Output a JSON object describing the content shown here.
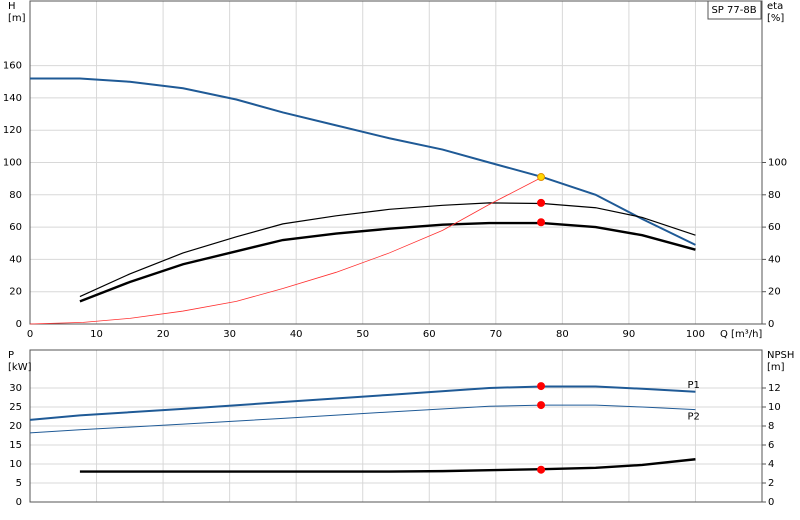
{
  "chart_data": [
    {
      "type": "line",
      "label": "SP 77-8B",
      "y_label": [
        "H",
        "[m]"
      ],
      "y2_label": [
        "eta",
        "[%]"
      ],
      "x_label": "Q [m³/h]",
      "xlim": [
        0,
        110
      ],
      "xticks": [
        0,
        10,
        20,
        30,
        40,
        50,
        60,
        70,
        80,
        90,
        100
      ],
      "ylim": [
        0,
        200
      ],
      "yticks": [
        0,
        20,
        40,
        60,
        80,
        100,
        120,
        140,
        160
      ],
      "y2lim": [
        0,
        200
      ],
      "y2ticks": [
        0,
        20,
        40,
        60,
        80,
        100
      ],
      "grid": true,
      "show_x_tick_labels": true,
      "series": [
        {
          "color": "#1f5a96",
          "line_width": 2,
          "x": [
            0,
            7.5,
            15,
            23,
            31,
            38,
            46,
            54,
            62,
            69,
            77,
            85,
            92,
            100
          ],
          "values": [
            152,
            152,
            150,
            146,
            139,
            131,
            123,
            115,
            108,
            100,
            91,
            80,
            65,
            49
          ]
        },
        {
          "color": "#000000",
          "line_width": 1.2,
          "axis": "y2",
          "x": [
            7.5,
            15,
            23,
            31,
            38,
            46,
            54,
            62,
            69,
            77,
            85,
            92,
            100
          ],
          "values": [
            17,
            31,
            44,
            54,
            62,
            67,
            71,
            73.5,
            75,
            74.6,
            72,
            66,
            55
          ]
        },
        {
          "color": "#000000",
          "line_width": 2.4,
          "axis": "y2",
          "x": [
            7.5,
            15,
            23,
            31,
            38,
            46,
            54,
            62,
            69,
            77,
            85,
            92,
            100
          ],
          "values": [
            14,
            26,
            37,
            45,
            52,
            56,
            59,
            61.5,
            62.5,
            62.5,
            60,
            55,
            46
          ]
        },
        {
          "color": "#ff3030",
          "line_width": 0.8,
          "x": [
            0,
            8,
            15,
            23,
            31,
            38,
            46,
            54,
            62,
            69,
            77
          ],
          "values": [
            0,
            1,
            3.5,
            8,
            14,
            22,
            32,
            44,
            58,
            74,
            91
          ]
        },
        {
          "color": "#ffd700",
          "marker": true,
          "x": [
            76.8
          ],
          "values": [
            91
          ]
        },
        {
          "color": "#ff0000",
          "marker": true,
          "axis": "y2",
          "x": [
            76.8,
            76.8
          ],
          "values": [
            75,
            63
          ]
        }
      ]
    },
    {
      "type": "line",
      "y_label": [
        "P",
        "[kW]"
      ],
      "y2_label": [
        "NPSH",
        "[m]"
      ],
      "xlim": [
        0,
        110
      ],
      "xticks": [
        0,
        10,
        20,
        30,
        40,
        50,
        60,
        70,
        80,
        90,
        100
      ],
      "ylim": [
        0,
        40
      ],
      "yticks": [
        0,
        5,
        10,
        15,
        20,
        25,
        30
      ],
      "y2lim": [
        0,
        16
      ],
      "y2ticks": [
        0,
        2,
        4,
        6,
        8,
        10,
        12
      ],
      "grid": true,
      "show_x_tick_labels": false,
      "series": [
        {
          "name": "P1",
          "color": "#1f5a96",
          "line_width": 2,
          "x": [
            0,
            7.5,
            23,
            38,
            54,
            69,
            77,
            85,
            92,
            100
          ],
          "values": [
            21.6,
            22.8,
            24.5,
            26.3,
            28.2,
            30,
            30.4,
            30.4,
            29.8,
            29
          ]
        },
        {
          "name": "P2",
          "color": "#1f5a96",
          "line_width": 1,
          "x": [
            0,
            7.5,
            23,
            38,
            54,
            69,
            77,
            85,
            92,
            100
          ],
          "values": [
            18.2,
            19,
            20.5,
            22,
            23.7,
            25.2,
            25.5,
            25.5,
            25,
            24.3
          ]
        },
        {
          "color": "#000000",
          "line_width": 2.4,
          "axis": "y2",
          "x": [
            7.5,
            23,
            38,
            54,
            62,
            69,
            77,
            85,
            92,
            100
          ],
          "values": [
            3.2,
            3.2,
            3.2,
            3.2,
            3.25,
            3.35,
            3.45,
            3.6,
            3.9,
            4.5
          ]
        },
        {
          "color": "#ff0000",
          "marker": true,
          "x": [
            76.8,
            76.8
          ],
          "values": [
            30.5,
            25.5
          ]
        },
        {
          "color": "#ff0000",
          "marker": true,
          "axis": "y2",
          "x": [
            76.8
          ],
          "values": [
            3.4
          ]
        }
      ]
    }
  ]
}
